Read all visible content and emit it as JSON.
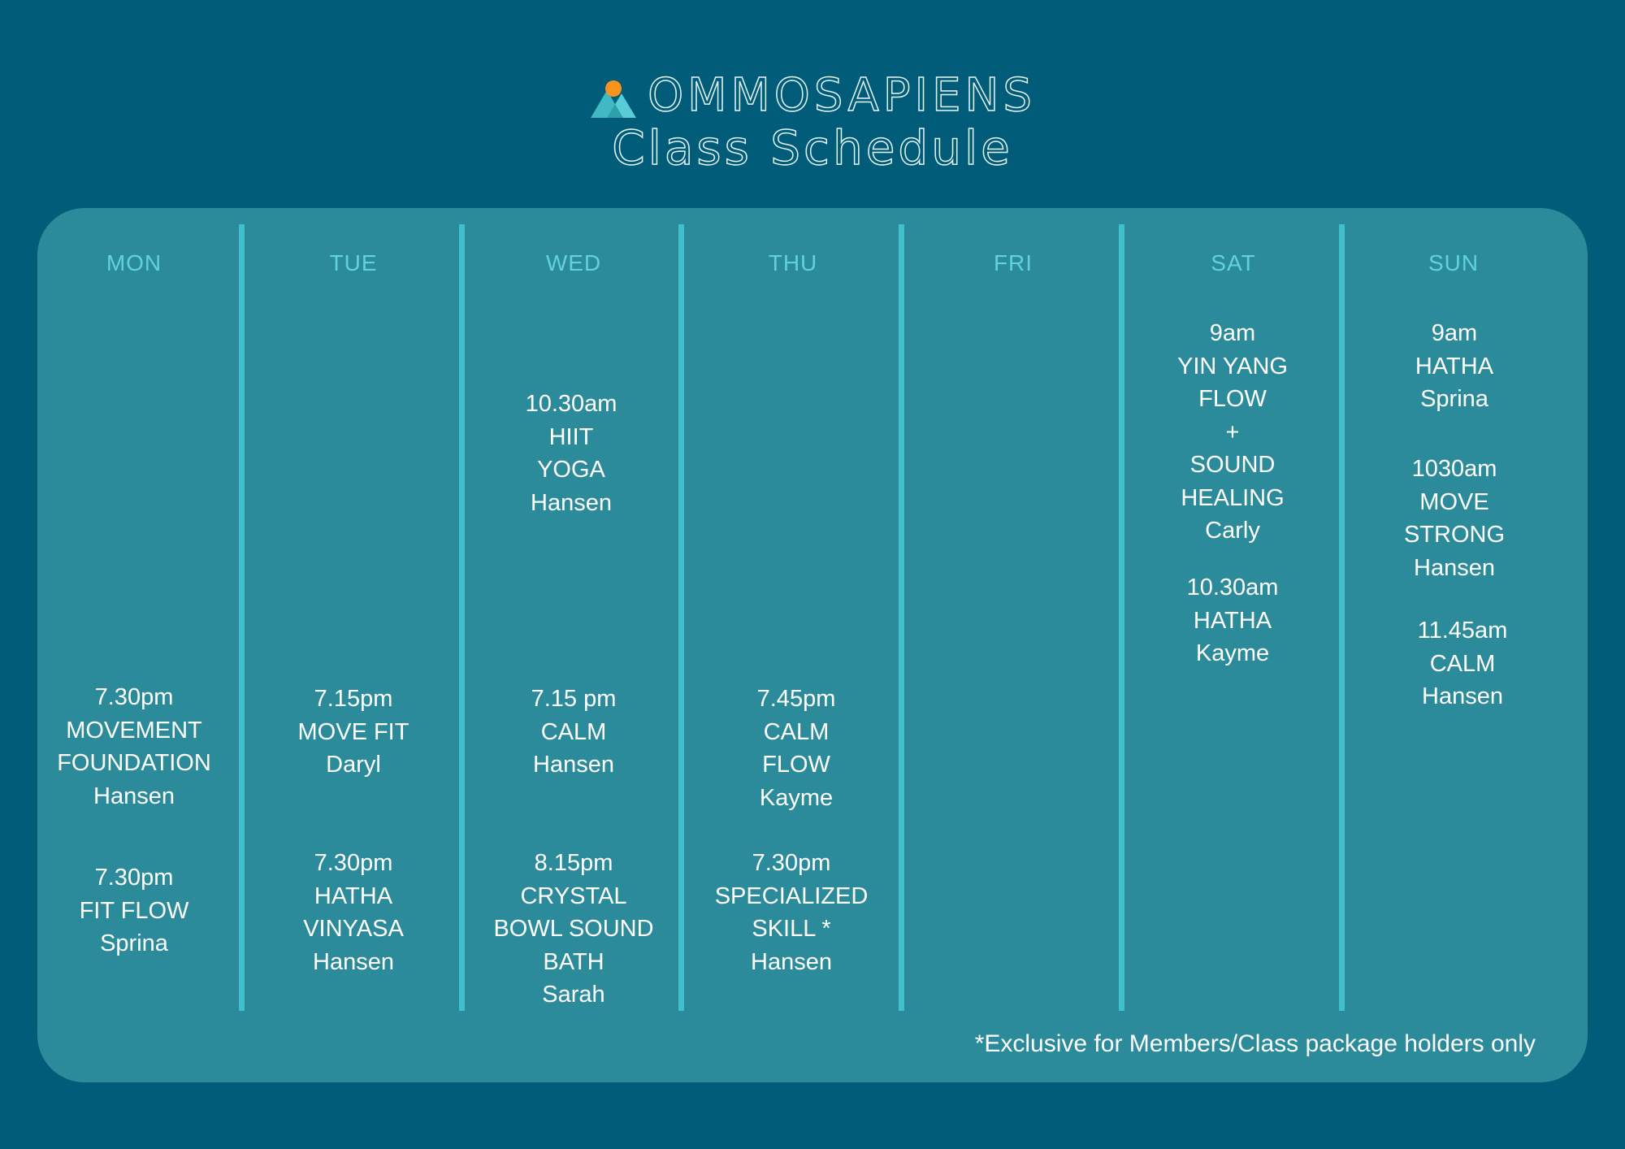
{
  "brand": {
    "name": "OMMOSAPIENS",
    "logo_icon": "mountain-sun-logo",
    "sun_color": "#f7931e",
    "mountain_color": "#3fb9c4"
  },
  "title": "Class Schedule",
  "days": [
    "MON",
    "TUE",
    "WED",
    "THU",
    "FRI",
    "SAT",
    "SUN"
  ],
  "classes": {
    "mon_1": {
      "time": "7.30pm",
      "name_1": "MOVEMENT",
      "name_2": "FOUNDATION",
      "instructor": "Hansen"
    },
    "mon_2": {
      "time": "7.30pm",
      "name_1": "FIT FLOW",
      "instructor": "Sprina"
    },
    "tue_1": {
      "time": "7.15pm",
      "name_1": "MOVE FIT",
      "instructor": "Daryl"
    },
    "tue_2": {
      "time": "7.30pm",
      "name_1": "HATHA",
      "name_2": "VINYASA",
      "instructor": "Hansen"
    },
    "wed_1": {
      "time": "10.30am",
      "name_1": "HIIT",
      "name_2": "YOGA",
      "instructor": "Hansen"
    },
    "wed_2": {
      "time": "7.15 pm",
      "name_1": "CALM",
      "instructor": "Hansen"
    },
    "wed_3": {
      "time": "8.15pm",
      "name_1": "CRYSTAL",
      "name_2": "BOWL SOUND",
      "name_3": "BATH",
      "instructor": "Sarah"
    },
    "thu_1": {
      "time": "7.45pm",
      "name_1": "CALM",
      "name_2": "FLOW",
      "instructor": "Kayme"
    },
    "thu_2": {
      "time": "7.30pm",
      "name_1": "SPECIALIZED",
      "name_2": "SKILL *",
      "instructor": "Hansen"
    },
    "sat_1": {
      "time": "9am",
      "name_1": "YIN YANG",
      "name_2": "FLOW",
      "name_3": "+",
      "name_4": "SOUND",
      "name_5": "HEALING",
      "instructor": "Carly"
    },
    "sat_2": {
      "time": "10.30am",
      "name_1": "HATHA",
      "instructor": "Kayme"
    },
    "sun_1": {
      "time": "9am",
      "name_1": "HATHA",
      "instructor": "Sprina"
    },
    "sun_2": {
      "time": "1030am",
      "name_1": "MOVE",
      "name_2": "STRONG",
      "instructor": "Hansen"
    },
    "sun_3": {
      "time": "11.45am",
      "name_1": "CALM",
      "instructor": "Hansen"
    }
  },
  "footnote": "*Exclusive for Members/Class package holders only"
}
